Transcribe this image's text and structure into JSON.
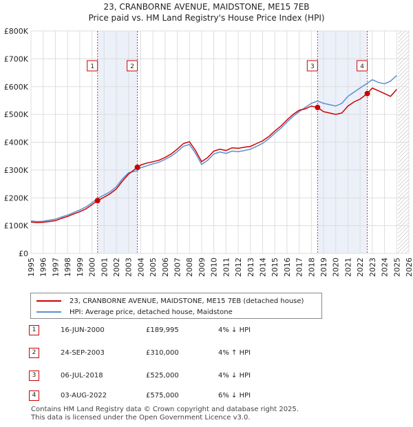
{
  "chart_data": {
    "type": "line",
    "title": "23, CRANBORNE AVENUE, MAIDSTONE, ME15 7EB",
    "subtitle": "Price paid vs. HM Land Registry's House Price Index (HPI)",
    "xlabel": "",
    "ylabel": "",
    "xlim": [
      1995,
      2026
    ],
    "ylim": [
      0,
      800000
    ],
    "x_ticks": [
      "1995",
      "1996",
      "1997",
      "1998",
      "1999",
      "2000",
      "2001",
      "2002",
      "2003",
      "2004",
      "2005",
      "2006",
      "2007",
      "2008",
      "2009",
      "2010",
      "2011",
      "2012",
      "2013",
      "2014",
      "2015",
      "2016",
      "2017",
      "2018",
      "2019",
      "2020",
      "2021",
      "2022",
      "2023",
      "2024",
      "2025",
      "2026"
    ],
    "y_ticks": [
      {
        "value": 0,
        "label": "£0"
      },
      {
        "value": 100000,
        "label": "£100K"
      },
      {
        "value": 200000,
        "label": "£200K"
      },
      {
        "value": 300000,
        "label": "£300K"
      },
      {
        "value": 400000,
        "label": "£400K"
      },
      {
        "value": 500000,
        "label": "£500K"
      },
      {
        "value": 600000,
        "label": "£600K"
      },
      {
        "value": 700000,
        "label": "£700K"
      },
      {
        "value": 800000,
        "label": "£800K"
      }
    ],
    "shaded_periods": [
      [
        2000.46,
        2003.73
      ],
      [
        2018.51,
        2022.59
      ]
    ],
    "future_hatch_from": 2025.1,
    "grid": true,
    "series": [
      {
        "name": "23, CRANBORNE AVENUE, MAIDSTONE, ME15 7EB (detached house)",
        "color": "#cc0000",
        "points": [
          [
            1995.0,
            113000
          ],
          [
            1995.5,
            111000
          ],
          [
            1996.0,
            112000
          ],
          [
            1996.5,
            115000
          ],
          [
            1997.0,
            118000
          ],
          [
            1997.5,
            126000
          ],
          [
            1998.0,
            133000
          ],
          [
            1998.5,
            142000
          ],
          [
            1999.0,
            150000
          ],
          [
            1999.5,
            160000
          ],
          [
            2000.0,
            175000
          ],
          [
            2000.46,
            189995
          ],
          [
            2001.0,
            202000
          ],
          [
            2001.5,
            215000
          ],
          [
            2002.0,
            232000
          ],
          [
            2002.5,
            260000
          ],
          [
            2003.0,
            285000
          ],
          [
            2003.73,
            310000
          ],
          [
            2004.0,
            318000
          ],
          [
            2004.5,
            325000
          ],
          [
            2005.0,
            330000
          ],
          [
            2005.5,
            335000
          ],
          [
            2006.0,
            345000
          ],
          [
            2006.5,
            358000
          ],
          [
            2007.0,
            375000
          ],
          [
            2007.5,
            395000
          ],
          [
            2008.0,
            402000
          ],
          [
            2008.5,
            370000
          ],
          [
            2009.0,
            330000
          ],
          [
            2009.5,
            345000
          ],
          [
            2010.0,
            368000
          ],
          [
            2010.5,
            375000
          ],
          [
            2011.0,
            370000
          ],
          [
            2011.5,
            380000
          ],
          [
            2012.0,
            378000
          ],
          [
            2012.5,
            382000
          ],
          [
            2013.0,
            385000
          ],
          [
            2013.5,
            395000
          ],
          [
            2014.0,
            405000
          ],
          [
            2014.5,
            420000
          ],
          [
            2015.0,
            440000
          ],
          [
            2015.5,
            458000
          ],
          [
            2016.0,
            480000
          ],
          [
            2016.5,
            500000
          ],
          [
            2017.0,
            515000
          ],
          [
            2017.5,
            520000
          ],
          [
            2018.0,
            530000
          ],
          [
            2018.51,
            525000
          ],
          [
            2019.0,
            510000
          ],
          [
            2019.5,
            505000
          ],
          [
            2020.0,
            500000
          ],
          [
            2020.5,
            505000
          ],
          [
            2021.0,
            530000
          ],
          [
            2021.5,
            545000
          ],
          [
            2022.0,
            555000
          ],
          [
            2022.59,
            575000
          ],
          [
            2023.0,
            595000
          ],
          [
            2023.5,
            585000
          ],
          [
            2024.0,
            575000
          ],
          [
            2024.5,
            565000
          ],
          [
            2025.0,
            590000
          ]
        ]
      },
      {
        "name": "HPI: Average price, detached house, Maidstone",
        "color": "#5b8fd0",
        "points": [
          [
            1995.0,
            117000
          ],
          [
            1995.5,
            115000
          ],
          [
            1996.0,
            116000
          ],
          [
            1996.5,
            120000
          ],
          [
            1997.0,
            123000
          ],
          [
            1997.5,
            131000
          ],
          [
            1998.0,
            138000
          ],
          [
            1998.5,
            147000
          ],
          [
            1999.0,
            156000
          ],
          [
            1999.5,
            167000
          ],
          [
            2000.0,
            182000
          ],
          [
            2000.46,
            198000
          ],
          [
            2001.0,
            210000
          ],
          [
            2001.5,
            222000
          ],
          [
            2002.0,
            240000
          ],
          [
            2002.5,
            268000
          ],
          [
            2003.0,
            290000
          ],
          [
            2003.73,
            298000
          ],
          [
            2004.0,
            308000
          ],
          [
            2004.5,
            315000
          ],
          [
            2005.0,
            322000
          ],
          [
            2005.5,
            328000
          ],
          [
            2006.0,
            338000
          ],
          [
            2006.5,
            350000
          ],
          [
            2007.0,
            366000
          ],
          [
            2007.5,
            385000
          ],
          [
            2008.0,
            392000
          ],
          [
            2008.5,
            360000
          ],
          [
            2009.0,
            320000
          ],
          [
            2009.5,
            335000
          ],
          [
            2010.0,
            358000
          ],
          [
            2010.5,
            365000
          ],
          [
            2011.0,
            360000
          ],
          [
            2011.5,
            368000
          ],
          [
            2012.0,
            366000
          ],
          [
            2012.5,
            370000
          ],
          [
            2013.0,
            375000
          ],
          [
            2013.5,
            385000
          ],
          [
            2014.0,
            396000
          ],
          [
            2014.5,
            412000
          ],
          [
            2015.0,
            432000
          ],
          [
            2015.5,
            450000
          ],
          [
            2016.0,
            472000
          ],
          [
            2016.5,
            493000
          ],
          [
            2017.0,
            510000
          ],
          [
            2017.5,
            525000
          ],
          [
            2018.0,
            540000
          ],
          [
            2018.51,
            548000
          ],
          [
            2019.0,
            540000
          ],
          [
            2019.5,
            535000
          ],
          [
            2020.0,
            530000
          ],
          [
            2020.5,
            540000
          ],
          [
            2021.0,
            565000
          ],
          [
            2021.5,
            580000
          ],
          [
            2022.0,
            595000
          ],
          [
            2022.59,
            612000
          ],
          [
            2023.0,
            625000
          ],
          [
            2023.5,
            615000
          ],
          [
            2024.0,
            610000
          ],
          [
            2024.5,
            620000
          ],
          [
            2025.0,
            640000
          ]
        ]
      }
    ],
    "sales": [
      {
        "label": "1",
        "date": "16-JUN-2000",
        "year": 2000.46,
        "price": 189995,
        "price_text": "£189,995",
        "hpi_text": "4% ↓ HPI"
      },
      {
        "label": "2",
        "date": "24-SEP-2003",
        "year": 2003.73,
        "price": 310000,
        "price_text": "£310,000",
        "hpi_text": "4% ↑ HPI"
      },
      {
        "label": "3",
        "date": "06-JUL-2018",
        "year": 2018.51,
        "price": 525000,
        "price_text": "£525,000",
        "hpi_text": "4% ↓ HPI"
      },
      {
        "label": "4",
        "date": "03-AUG-2022",
        "year": 2022.59,
        "price": 575000,
        "price_text": "£575,000",
        "hpi_text": "6% ↓ HPI"
      }
    ],
    "legend": [
      {
        "label": "23, CRANBORNE AVENUE, MAIDSTONE, ME15 7EB (detached house)",
        "color": "#cc0000"
      },
      {
        "label": "HPI: Average price, detached house, Maidstone",
        "color": "#5b8fd0"
      }
    ],
    "legend_position": "below"
  },
  "footer": {
    "line1": "Contains HM Land Registry data © Crown copyright and database right 2025.",
    "line2": "This data is licensed under the Open Government Licence v3.0."
  }
}
